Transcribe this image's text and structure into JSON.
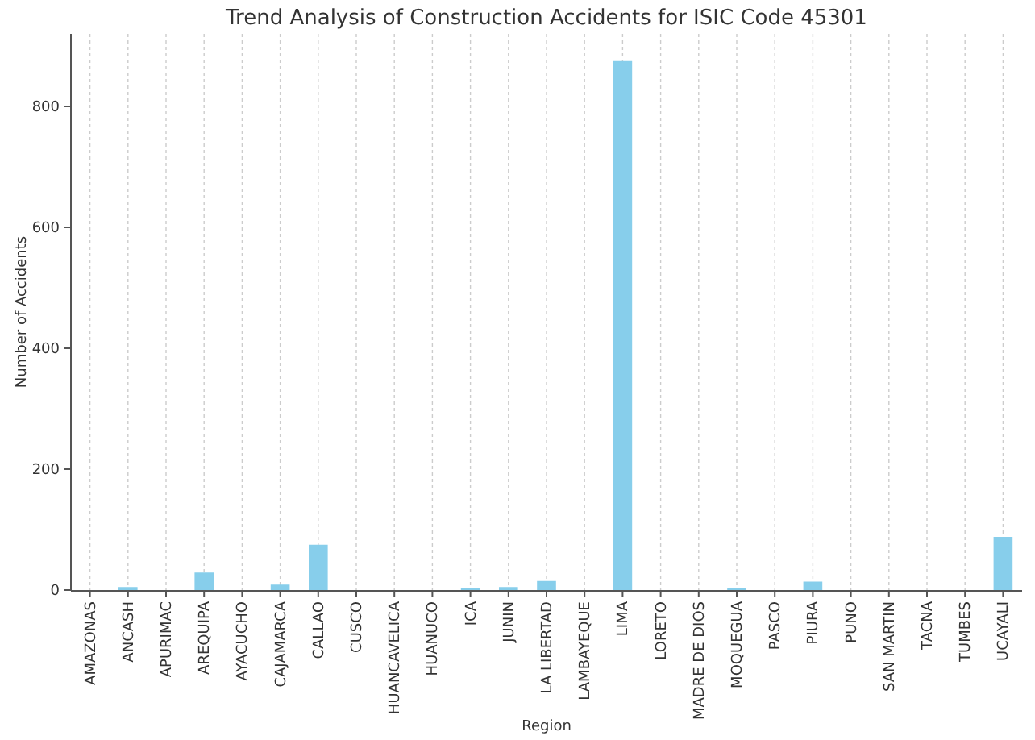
{
  "chart_data": {
    "type": "bar",
    "title": "Trend Analysis of Construction Accidents for ISIC Code 45301",
    "xlabel": "Region",
    "ylabel": "Number of Accidents",
    "categories": [
      "AMAZONAS",
      "ANCASH",
      "APURIMAC",
      "AREQUIPA",
      "AYACUCHO",
      "CAJAMARCA",
      "CALLAO",
      "CUSCO",
      "HUANCAVELICA",
      "HUANUCO",
      "ICA",
      "JUNIN",
      "LA LIBERTAD",
      "LAMBAYEQUE",
      "LIMA",
      "LORETO",
      "MADRE DE DIOS",
      "MOQUEGUA",
      "PASCO",
      "PIURA",
      "PUNO",
      "SAN MARTIN",
      "TACNA",
      "TUMBES",
      "UCAYALI"
    ],
    "values": [
      0,
      5,
      0,
      29,
      0,
      9,
      75,
      0,
      0,
      0,
      4,
      5,
      15,
      0,
      875,
      0,
      0,
      4,
      0,
      14,
      0,
      0,
      0,
      0,
      88
    ],
    "color": "#87ceeb",
    "ylim": [
      0,
      920
    ],
    "yticks": [
      0,
      200,
      400,
      600,
      800
    ],
    "grid": "x"
  }
}
